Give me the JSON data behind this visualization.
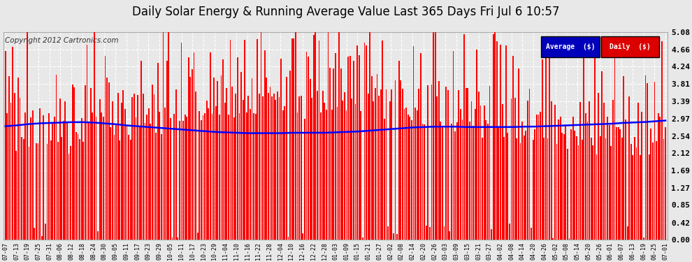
{
  "title": "Daily Solar Energy & Running Average Value Last 365 Days Fri Jul 6 10:57",
  "copyright": "Copyright 2012 Cartronics.com",
  "ylim": [
    0.0,
    5.08
  ],
  "yticks": [
    0.0,
    0.42,
    0.85,
    1.27,
    1.69,
    2.12,
    2.54,
    2.97,
    3.39,
    3.81,
    4.24,
    4.66,
    5.08
  ],
  "bar_color": "#ff0000",
  "avg_color": "#0000ff",
  "bg_color": "#e8e8e8",
  "plot_bg_color": "#e8e8e8",
  "grid_color": "#ffffff",
  "legend_avg_color": "#0000bb",
  "legend_daily_color": "#dd0000",
  "legend_avg_text": "Average  ($)",
  "legend_daily_text": "Daily  ($)",
  "title_fontsize": 12,
  "copyright_fontsize": 7.5,
  "n_bars": 365,
  "x_labels": [
    "07-07",
    "07-13",
    "07-19",
    "07-25",
    "07-31",
    "08-06",
    "08-12",
    "08-18",
    "08-24",
    "08-30",
    "09-05",
    "09-11",
    "09-17",
    "09-23",
    "09-29",
    "10-05",
    "10-11",
    "10-17",
    "10-23",
    "10-29",
    "11-04",
    "11-10",
    "11-16",
    "11-22",
    "11-28",
    "12-04",
    "12-10",
    "12-16",
    "12-22",
    "12-28",
    "01-03",
    "01-09",
    "01-15",
    "01-21",
    "01-27",
    "02-02",
    "02-08",
    "02-14",
    "02-20",
    "02-26",
    "03-03",
    "03-09",
    "03-15",
    "03-21",
    "03-27",
    "04-02",
    "04-08",
    "04-14",
    "04-20",
    "04-26",
    "05-02",
    "05-08",
    "05-14",
    "05-20",
    "05-26",
    "06-01",
    "06-07",
    "06-13",
    "06-19",
    "06-25",
    "07-01"
  ],
  "avg_line": [
    2.78,
    2.8,
    2.83,
    2.85,
    2.86,
    2.87,
    2.88,
    2.88,
    2.87,
    2.85,
    2.83,
    2.8,
    2.78,
    2.76,
    2.74,
    2.72,
    2.7,
    2.68,
    2.66,
    2.64,
    2.63,
    2.62,
    2.61,
    2.61,
    2.61,
    2.61,
    2.62,
    2.62,
    2.62,
    2.62,
    2.63,
    2.64,
    2.65,
    2.67,
    2.69,
    2.71,
    2.73,
    2.75,
    2.76,
    2.77,
    2.77,
    2.77,
    2.76,
    2.76,
    2.76,
    2.76,
    2.76,
    2.77,
    2.77,
    2.78,
    2.79,
    2.8,
    2.81,
    2.82,
    2.83,
    2.84,
    2.86,
    2.87,
    2.88,
    2.9,
    2.92
  ]
}
